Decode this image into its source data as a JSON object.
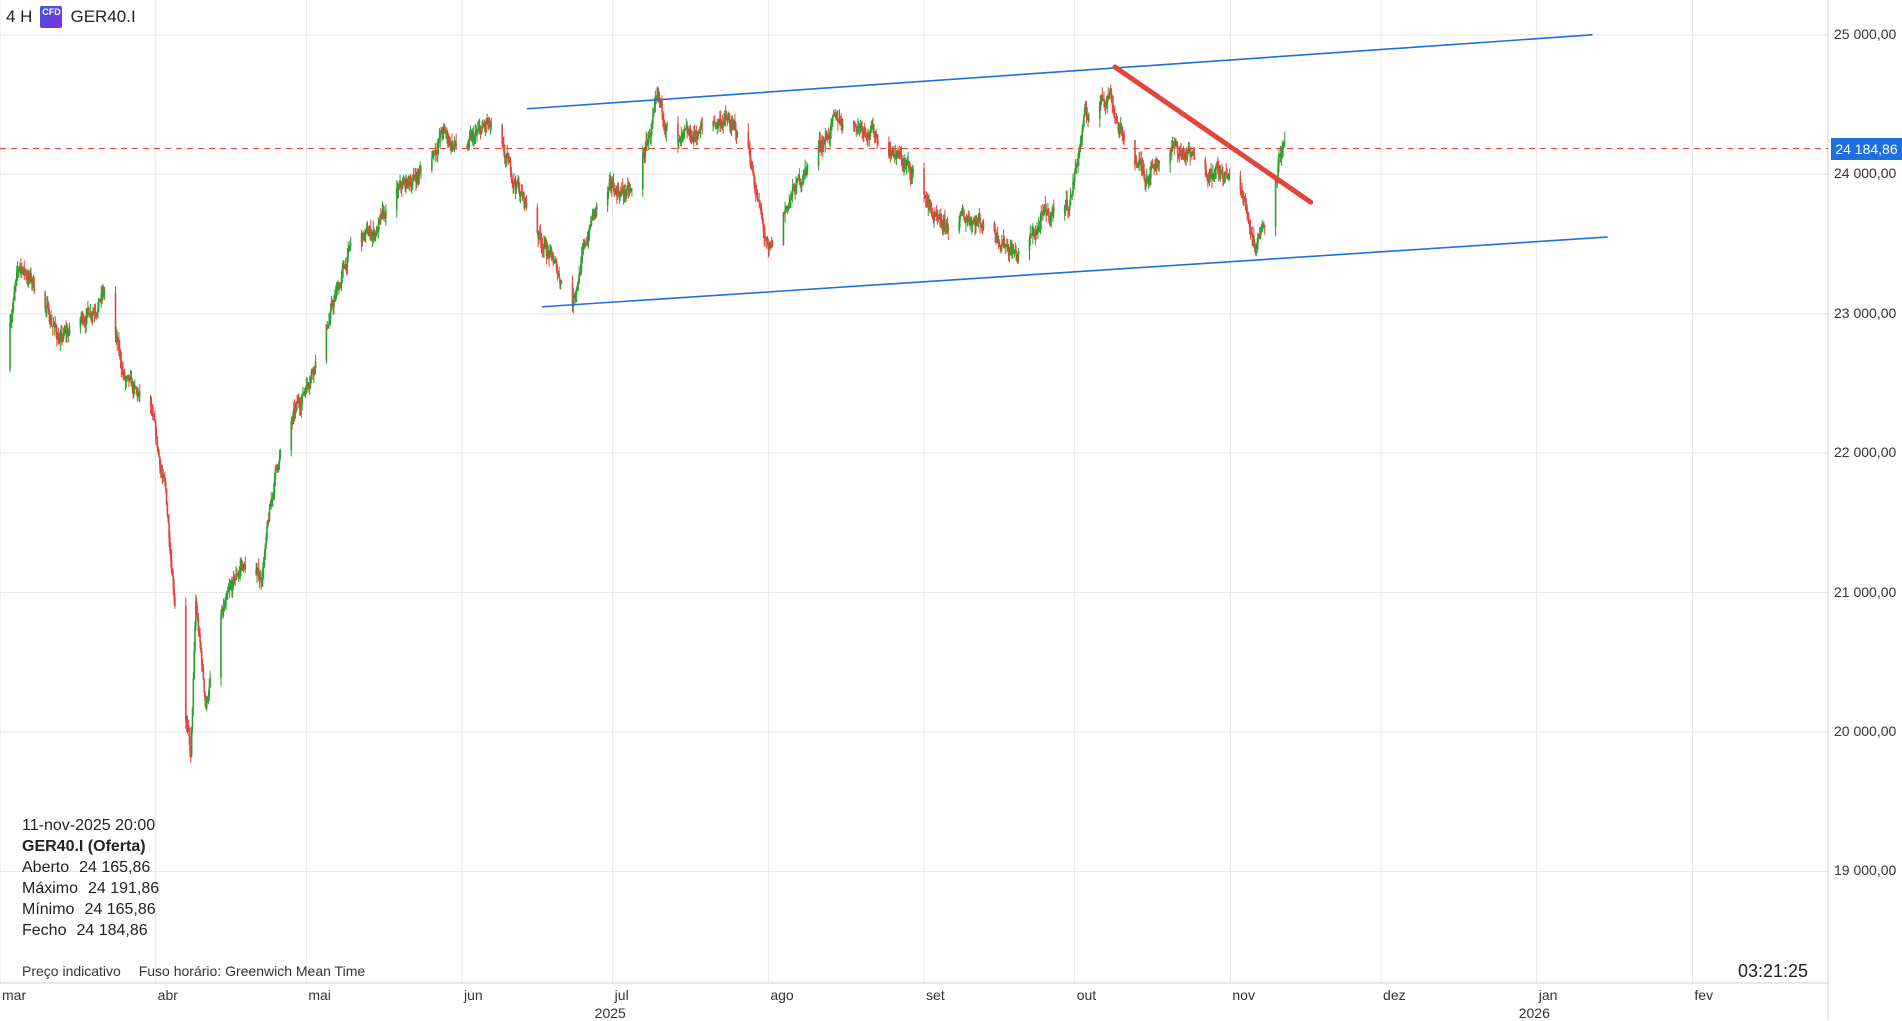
{
  "header": {
    "timeframe": "4 H",
    "icon": "cfd-icon",
    "symbol": "GER40.I"
  },
  "info_box": {
    "datetime": "11-nov-2025 20:00",
    "title": "GER40.I (Oferta)",
    "rows": [
      {
        "label": "Aberto",
        "value": "24 165,86"
      },
      {
        "label": "Máximo",
        "value": "24 191,86"
      },
      {
        "label": "Mínimo",
        "value": "24 165,86"
      },
      {
        "label": "Fecho",
        "value": "24 184,86"
      }
    ]
  },
  "footer": {
    "note": "Preço indicativo",
    "timezone": "Fuso horário: Greenwich Mean Time",
    "clock": "03:21:25"
  },
  "colors": {
    "up": "#2ca02c",
    "down": "#e0463c",
    "channel": "#1e6fe0",
    "trendline": "#e0463c",
    "grid": "#e6e6e6",
    "current_price": "#e0463c"
  },
  "chart_data": {
    "type": "candlestick",
    "symbol": "GER40.I",
    "interval": "4 H",
    "ylim": [
      18200,
      25250
    ],
    "y_ticks": [
      "19 000,00",
      "20 000,00",
      "21 000,00",
      "22 000,00",
      "23 000,00",
      "24 000,00",
      "25 000,00"
    ],
    "y_tick_values": [
      19000,
      20000,
      21000,
      22000,
      23000,
      24000,
      25000
    ],
    "x_range": [
      "2025-03-01",
      "2026-02-28"
    ],
    "x_ticks": [
      {
        "label": "mar",
        "date": "2025-03-01"
      },
      {
        "label": "abr",
        "date": "2025-04-01"
      },
      {
        "label": "mai",
        "date": "2025-05-01"
      },
      {
        "label": "jun",
        "date": "2025-06-01"
      },
      {
        "label": "jul",
        "date": "2025-07-01"
      },
      {
        "label": "ago",
        "date": "2025-08-01"
      },
      {
        "label": "set",
        "date": "2025-09-01"
      },
      {
        "label": "out",
        "date": "2025-10-01"
      },
      {
        "label": "nov",
        "date": "2025-11-01"
      },
      {
        "label": "dez",
        "date": "2025-12-01"
      },
      {
        "label": "jan",
        "date": "2026-01-01"
      },
      {
        "label": "fev",
        "date": "2026-02-01"
      }
    ],
    "year_labels": [
      {
        "label": "2025",
        "date": "2025-07-01"
      },
      {
        "label": "2026",
        "date": "2026-01-01"
      }
    ],
    "current_price": {
      "value": 24184.86,
      "label": "24 184,86"
    },
    "close_path": [
      [
        "2025-03-01",
        22600
      ],
      [
        "2025-03-05",
        23350
      ],
      [
        "2025-03-09",
        23150
      ],
      [
        "2025-03-13",
        22800
      ],
      [
        "2025-03-17",
        22950
      ],
      [
        "2025-03-22",
        23150
      ],
      [
        "2025-03-26",
        22500
      ],
      [
        "2025-03-31",
        22300
      ],
      [
        "2025-04-03",
        21700
      ],
      [
        "2025-04-06",
        20500
      ],
      [
        "2025-04-08",
        19800
      ],
      [
        "2025-04-09",
        20900
      ],
      [
        "2025-04-11",
        20200
      ],
      [
        "2025-04-14",
        20800
      ],
      [
        "2025-04-18",
        21200
      ],
      [
        "2025-04-22",
        21100
      ],
      [
        "2025-04-25",
        21900
      ],
      [
        "2025-04-30",
        22400
      ],
      [
        "2025-05-05",
        22900
      ],
      [
        "2025-05-10",
        23500
      ],
      [
        "2025-05-15",
        23600
      ],
      [
        "2025-05-20",
        23900
      ],
      [
        "2025-05-25",
        24050
      ],
      [
        "2025-05-28",
        24300
      ],
      [
        "2025-06-01",
        24150
      ],
      [
        "2025-06-06",
        24350
      ],
      [
        "2025-06-11",
        24000
      ],
      [
        "2025-06-16",
        23600
      ],
      [
        "2025-06-20",
        23300
      ],
      [
        "2025-06-23",
        23100
      ],
      [
        "2025-06-27",
        23700
      ],
      [
        "2025-07-01",
        23900
      ],
      [
        "2025-07-05",
        23850
      ],
      [
        "2025-07-10",
        24500
      ],
      [
        "2025-07-14",
        24200
      ],
      [
        "2025-07-18",
        24300
      ],
      [
        "2025-07-23",
        24400
      ],
      [
        "2025-07-28",
        24200
      ],
      [
        "2025-08-01",
        23400
      ],
      [
        "2025-08-05",
        23800
      ],
      [
        "2025-08-10",
        24150
      ],
      [
        "2025-08-15",
        24400
      ],
      [
        "2025-08-20",
        24350
      ],
      [
        "2025-08-25",
        24200
      ],
      [
        "2025-08-31",
        23950
      ],
      [
        "2025-09-04",
        23600
      ],
      [
        "2025-09-10",
        23700
      ],
      [
        "2025-09-15",
        23600
      ],
      [
        "2025-09-20",
        23400
      ],
      [
        "2025-09-25",
        23700
      ],
      [
        "2025-09-30",
        23800
      ],
      [
        "2025-10-03",
        24400
      ],
      [
        "2025-10-08",
        24600
      ],
      [
        "2025-10-10",
        24300
      ],
      [
        "2025-10-15",
        24000
      ],
      [
        "2025-10-20",
        24200
      ],
      [
        "2025-10-25",
        24100
      ],
      [
        "2025-10-30",
        24000
      ],
      [
        "2025-11-03",
        23900
      ],
      [
        "2025-11-06",
        23500
      ],
      [
        "2025-11-09",
        23800
      ],
      [
        "2025-11-11",
        24184.86
      ]
    ],
    "overlays": [
      {
        "name": "upper-channel-line",
        "color": "#1e6fe0",
        "from": [
          "2025-06-14",
          24470
        ],
        "to": [
          "2026-01-12",
          25000
        ]
      },
      {
        "name": "lower-channel-line",
        "color": "#1e6fe0",
        "from": [
          "2025-06-17",
          23050
        ],
        "to": [
          "2026-01-15",
          23550
        ]
      },
      {
        "name": "descending-trendline",
        "color": "#e0463c",
        "from": [
          "2025-10-09",
          24770
        ],
        "to": [
          "2025-11-17",
          23800
        ]
      }
    ]
  }
}
